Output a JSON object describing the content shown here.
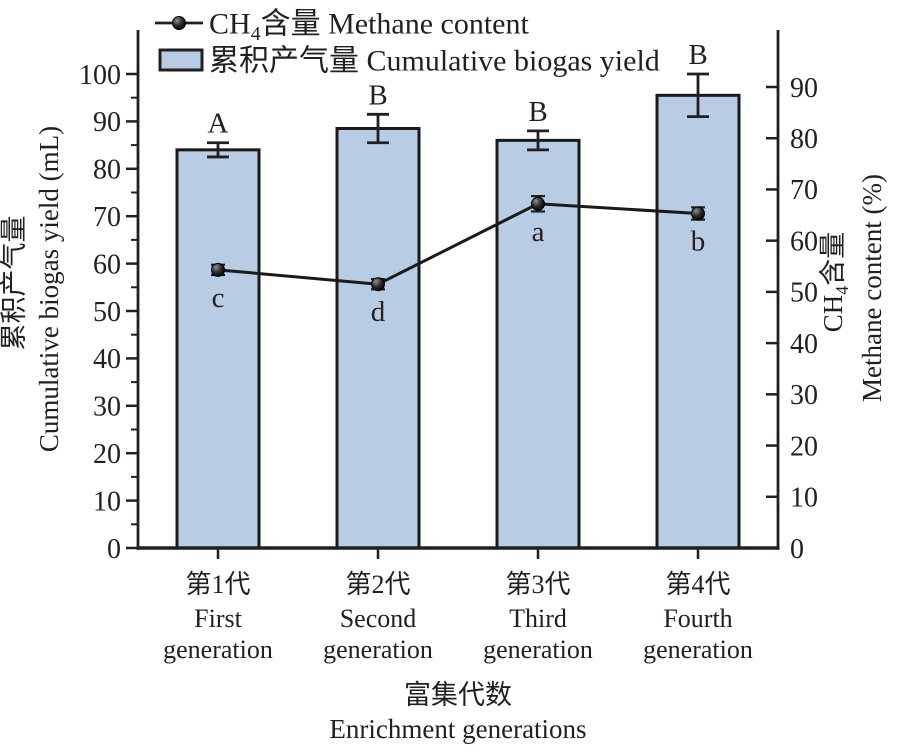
{
  "figure": {
    "background": "#ffffff",
    "ink_color": "#231f20",
    "bar_fill": "#b8cce4"
  },
  "chart_data": {
    "type": "bar+line",
    "title": "",
    "categories": [
      {
        "zh": "第1代",
        "en1": "First",
        "en2": "generation"
      },
      {
        "zh": "第2代",
        "en1": "Second",
        "en2": "generation"
      },
      {
        "zh": "第3代",
        "en1": "Third",
        "en2": "generation"
      },
      {
        "zh": "第4代",
        "en1": "Fourth",
        "en2": "generation"
      }
    ],
    "bar_series": {
      "name": "累积产气量 Cumulative biogas yield",
      "axis": "left",
      "unit": "mL",
      "values": [
        84,
        88.5,
        86,
        95.5
      ],
      "errors": [
        1.5,
        3,
        2,
        4.5
      ],
      "sig_letters": [
        "A",
        "B",
        "B",
        "B"
      ],
      "fill": "#b8cce4",
      "stroke": "#1a1a1a"
    },
    "line_series": {
      "name": "CH4含量 Methane content",
      "axis": "right",
      "unit": "%",
      "values": [
        54.3,
        51.5,
        67.2,
        65.3
      ],
      "errors": [
        1,
        1,
        1.5,
        1.2
      ],
      "sig_letters": [
        "c",
        "d",
        "a",
        "b"
      ],
      "color": "#1a1a1a"
    },
    "left_axis": {
      "label_zh": "累积产气量",
      "label_en": "Cumulative biogas yield (mL)",
      "min": 0,
      "max": 100,
      "tick_step": 10,
      "minor_step": 5,
      "tick_labels": [
        "0",
        "10",
        "20",
        "30",
        "40",
        "50",
        "60",
        "70",
        "80",
        "90",
        "100"
      ]
    },
    "right_axis": {
      "label_pre": "CH",
      "label_sub": "4",
      "label_zh_rest": "含量",
      "label_en": "Methane content (%)",
      "min": 0,
      "max": 90,
      "tick_step": 10,
      "tick_labels": [
        "0",
        "10",
        "20",
        "30",
        "40",
        "50",
        "60",
        "70",
        "80",
        "90"
      ]
    },
    "x_axis": {
      "title_zh": "富集代数",
      "title_en": "Enrichment generations"
    },
    "legend": {
      "methane": {
        "pre": "CH",
        "sub": "4",
        "rest": "含量 Methane content"
      },
      "biogas": {
        "label": "累积产气量 Cumulative biogas yield"
      }
    }
  }
}
